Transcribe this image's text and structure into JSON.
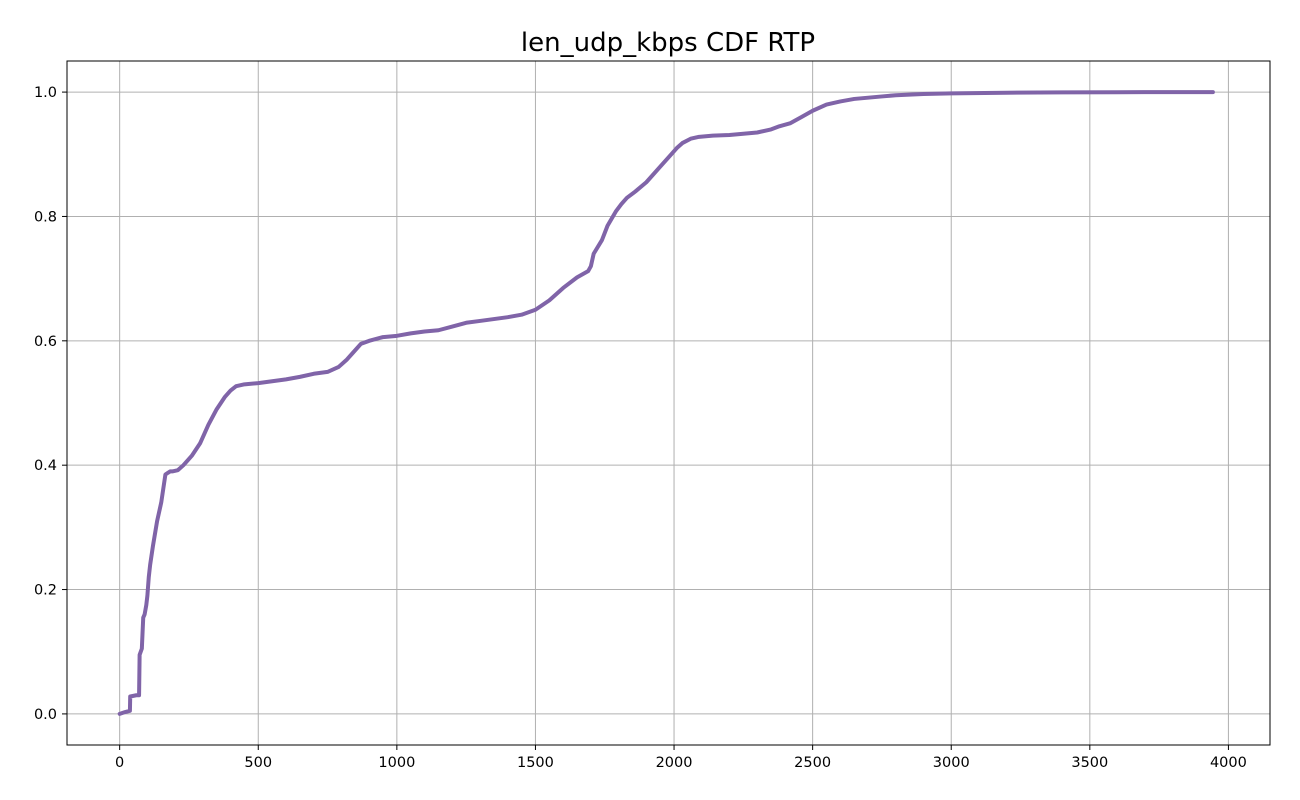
{
  "chart_data": {
    "type": "line",
    "title": "len_udp_kbps CDF RTP",
    "xlabel": "",
    "ylabel": "",
    "xlim": [
      -190,
      4150
    ],
    "ylim": [
      -0.05,
      1.05
    ],
    "x_ticks": [
      0,
      500,
      1000,
      1500,
      2000,
      2500,
      3000,
      3500,
      4000
    ],
    "x_tick_labels": [
      "0",
      "500",
      "1000",
      "1500",
      "2000",
      "2500",
      "3000",
      "3500",
      "4000"
    ],
    "y_ticks": [
      0.0,
      0.2,
      0.4,
      0.6,
      0.8,
      1.0
    ],
    "y_tick_labels": [
      "0.0",
      "0.2",
      "0.4",
      "0.6",
      "0.8",
      "1.0"
    ],
    "grid": true,
    "legend": "none",
    "series": [
      {
        "color": "#8064a8",
        "x": [
          0,
          20,
          37,
          38,
          60,
          70,
          72,
          80,
          85,
          90,
          96,
          100,
          105,
          110,
          120,
          135,
          150,
          165,
          175,
          182,
          190,
          210,
          230,
          260,
          290,
          320,
          350,
          380,
          400,
          420,
          450,
          500,
          550,
          600,
          650,
          700,
          750,
          790,
          820,
          840,
          870,
          900,
          950,
          1000,
          1050,
          1100,
          1150,
          1200,
          1250,
          1300,
          1350,
          1400,
          1450,
          1500,
          1550,
          1600,
          1650,
          1690,
          1700,
          1710,
          1740,
          1760,
          1790,
          1810,
          1830,
          1860,
          1900,
          1950,
          1990,
          2010,
          2030,
          2060,
          2090,
          2140,
          2200,
          2250,
          2300,
          2350,
          2380,
          2420,
          2460,
          2500,
          2550,
          2600,
          2650,
          2700,
          2750,
          2800,
          2850,
          2900,
          3000,
          3200,
          3400,
          3600,
          3800,
          3944
        ],
        "y": [
          0.0,
          0.003,
          0.005,
          0.028,
          0.03,
          0.03,
          0.095,
          0.105,
          0.155,
          0.16,
          0.175,
          0.19,
          0.22,
          0.24,
          0.27,
          0.31,
          0.34,
          0.385,
          0.388,
          0.39,
          0.39,
          0.392,
          0.4,
          0.415,
          0.435,
          0.465,
          0.49,
          0.51,
          0.52,
          0.527,
          0.53,
          0.532,
          0.535,
          0.538,
          0.542,
          0.547,
          0.55,
          0.558,
          0.57,
          0.58,
          0.595,
          0.6,
          0.606,
          0.608,
          0.612,
          0.615,
          0.617,
          0.623,
          0.629,
          0.632,
          0.635,
          0.638,
          0.642,
          0.65,
          0.665,
          0.685,
          0.702,
          0.712,
          0.72,
          0.74,
          0.762,
          0.785,
          0.808,
          0.82,
          0.83,
          0.84,
          0.855,
          0.88,
          0.9,
          0.91,
          0.918,
          0.925,
          0.928,
          0.93,
          0.931,
          0.933,
          0.935,
          0.94,
          0.945,
          0.95,
          0.96,
          0.97,
          0.98,
          0.985,
          0.989,
          0.991,
          0.993,
          0.995,
          0.996,
          0.997,
          0.998,
          0.999,
          0.9995,
          0.9998,
          1.0,
          1.0
        ]
      }
    ]
  }
}
